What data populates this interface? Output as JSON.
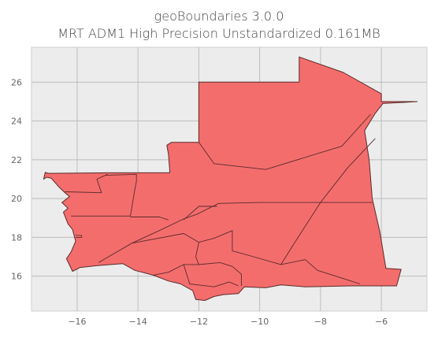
{
  "title": {
    "line1": "geoBoundaries 3.0.0",
    "line2": "MRT ADM1 High Precision Unstandardized 0.161MB"
  },
  "chart_data": {
    "type": "map",
    "xlim": [
      -17.5,
      -4.5
    ],
    "ylim": [
      14.2,
      27.8
    ],
    "x_ticks": [
      -16,
      -14,
      -12,
      -10,
      -8,
      -6
    ],
    "y_ticks": [
      16,
      18,
      20,
      22,
      24,
      26
    ],
    "x_tick_labels": [
      "−16",
      "−14",
      "−12",
      "−10",
      "−8",
      "−6"
    ],
    "y_tick_labels": [
      "16",
      "18",
      "20",
      "22",
      "24",
      "26"
    ],
    "grid": true,
    "fill_color": "#f46d6d",
    "edge_color": "#5a2a2a",
    "background_color": "#ececec"
  }
}
